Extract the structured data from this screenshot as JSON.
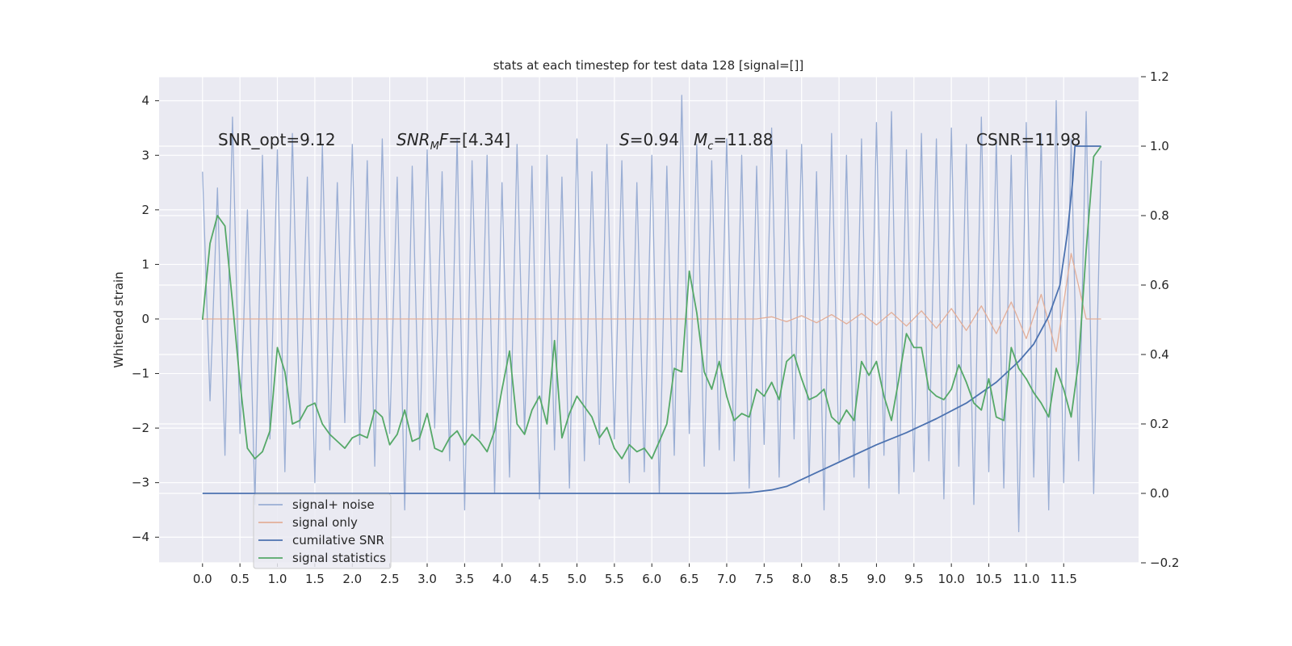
{
  "chart_data": {
    "type": "line",
    "title": "stats at each timestep for test data 128 [signal=[]]",
    "ylabel": "Whitened strain",
    "annotations": [
      "SNR_opt=9.12",
      [
        "SNR",
        "M",
        "F",
        "=[4.34]"
      ],
      [
        "S",
        "=0.94"
      ],
      [
        "M",
        "c",
        "=11.88"
      ],
      "CSNR=11.98"
    ],
    "background": "#eaeaf2",
    "grid": true,
    "legend": "lower left",
    "xlim": [
      -0.58,
      12.5
    ],
    "ylim": [
      -4.47,
      4.44
    ],
    "y2lim": [
      -0.2,
      1.2
    ],
    "xticks": [
      {
        "value": 0,
        "label": "0.0"
      },
      {
        "value": 0.5,
        "label": "0.5"
      },
      {
        "value": 1,
        "label": "1.0"
      },
      {
        "value": 1.5,
        "label": "1.5"
      },
      {
        "value": 2,
        "label": "2.0"
      },
      {
        "value": 2.5,
        "label": "2.5"
      },
      {
        "value": 3,
        "label": "3.0"
      },
      {
        "value": 3.5,
        "label": "3.5"
      },
      {
        "value": 4,
        "label": "4.0"
      },
      {
        "value": 4.5,
        "label": "4.5"
      },
      {
        "value": 5,
        "label": "5.0"
      },
      {
        "value": 5.5,
        "label": "5.5"
      },
      {
        "value": 6,
        "label": "6.0"
      },
      {
        "value": 6.5,
        "label": "6.5"
      },
      {
        "value": 7,
        "label": "7.0"
      },
      {
        "value": 7.5,
        "label": "7.5"
      },
      {
        "value": 8,
        "label": "8.0"
      },
      {
        "value": 8.5,
        "label": "8.5"
      },
      {
        "value": 9,
        "label": "9.0"
      },
      {
        "value": 9.5,
        "label": "9.5"
      },
      {
        "value": 10,
        "label": "10.0"
      },
      {
        "value": 10.5,
        "label": "10.5"
      },
      {
        "value": 11,
        "label": "11.0"
      },
      {
        "value": 11.5,
        "label": "11.5"
      }
    ],
    "yticks": [
      {
        "value": -4,
        "label": "−4"
      },
      {
        "value": -3,
        "label": "−3"
      },
      {
        "value": -2,
        "label": "−2"
      },
      {
        "value": -1,
        "label": "−1"
      },
      0,
      1,
      2,
      3,
      4
    ],
    "y2ticks": [
      {
        "value": -0.2,
        "label": "−0.2"
      },
      {
        "value": 0,
        "label": "0.0"
      },
      0.2,
      0.4,
      0.6,
      0.8,
      {
        "value": 1,
        "label": "1.0"
      },
      1.2
    ],
    "x": [
      0,
      0.1,
      0.2,
      0.3,
      0.4,
      0.5,
      0.6,
      0.7,
      0.8,
      0.9,
      1,
      1.1,
      1.2,
      1.3,
      1.4,
      1.5,
      1.6,
      1.7,
      1.8,
      1.9,
      2,
      2.1,
      2.2,
      2.3,
      2.4,
      2.5,
      2.6,
      2.7,
      2.8,
      2.9,
      3,
      3.1,
      3.2,
      3.3,
      3.4,
      3.5,
      3.6,
      3.7,
      3.8,
      3.9,
      4,
      4.1,
      4.2,
      4.3,
      4.4,
      4.5,
      4.6,
      4.7,
      4.8,
      4.9,
      5,
      5.1,
      5.2,
      5.3,
      5.4,
      5.5,
      5.6,
      5.7,
      5.8,
      5.9,
      6,
      6.1,
      6.2,
      6.3,
      6.4,
      6.5,
      6.6,
      6.7,
      6.8,
      6.9,
      7,
      7.1,
      7.2,
      7.3,
      7.4,
      7.5,
      7.6,
      7.7,
      7.8,
      7.9,
      8,
      8.1,
      8.2,
      8.3,
      8.4,
      8.5,
      8.6,
      8.7,
      8.8,
      8.9,
      9,
      9.1,
      9.2,
      9.3,
      9.4,
      9.5,
      9.6,
      9.7,
      9.8,
      9.9,
      10,
      10.1,
      10.2,
      10.3,
      10.4,
      10.5,
      10.6,
      10.7,
      10.8,
      10.9,
      11,
      11.1,
      11.2,
      11.3,
      11.4,
      11.5,
      11.6,
      11.7,
      11.8,
      11.9,
      12
    ],
    "series": [
      {
        "name": "signal+ noise",
        "color": "#9aaed4",
        "values": [
          2.7,
          -1.5,
          2.4,
          -2.5,
          3.7,
          -2.1,
          2.0,
          -3.4,
          3.0,
          -2.2,
          3.1,
          -2.8,
          3.4,
          -2.0,
          2.6,
          -3.0,
          3.2,
          -2.4,
          2.5,
          -1.9,
          3.2,
          -2.3,
          2.9,
          -2.7,
          3.3,
          -2.1,
          2.6,
          -3.5,
          2.8,
          -2.4,
          3.1,
          -2.0,
          2.7,
          -2.6,
          3.3,
          -3.5,
          2.9,
          -2.2,
          3.0,
          -3.2,
          2.5,
          -2.9,
          3.2,
          -2.1,
          2.8,
          -3.3,
          3.0,
          -2.4,
          2.6,
          -3.1,
          3.3,
          -2.6,
          2.7,
          -2.3,
          3.2,
          -2.2,
          2.9,
          -3.0,
          2.5,
          -2.8,
          3.0,
          -3.2,
          2.8,
          -2.5,
          4.1,
          -2.1,
          3.2,
          -2.7,
          2.9,
          -2.4,
          3.3,
          -2.6,
          3.0,
          -3.1,
          2.8,
          -2.3,
          3.5,
          -2.9,
          3.1,
          -2.2,
          3.2,
          -3.0,
          2.7,
          -3.5,
          3.4,
          -2.6,
          3.0,
          -2.9,
          3.3,
          -3.1,
          3.6,
          -2.5,
          3.8,
          -3.2,
          3.1,
          -2.8,
          3.4,
          -2.6,
          3.3,
          -3.3,
          3.5,
          -2.7,
          3.2,
          -3.4,
          3.7,
          -2.8,
          3.3,
          -3.1,
          3.0,
          -3.9,
          3.6,
          -2.9,
          3.4,
          -3.5,
          4.0,
          -3.0,
          3.3,
          -2.6,
          3.8,
          -3.2,
          2.9
        ]
      },
      {
        "name": "signal only",
        "color": "#e3ae98",
        "x": [
          0,
          0.2,
          0.4,
          0.6,
          0.8,
          1,
          1.2,
          1.4,
          1.6,
          1.8,
          2,
          2.2,
          2.4,
          2.6,
          2.8,
          3,
          3.2,
          3.4,
          3.6,
          3.8,
          4,
          4.2,
          4.4,
          4.6,
          4.8,
          5,
          5.2,
          5.4,
          5.6,
          5.8,
          6,
          6.2,
          6.4,
          6.6,
          6.8,
          7,
          7.2,
          7.4,
          7.6,
          7.8,
          8,
          8.2,
          8.4,
          8.6,
          8.8,
          9,
          9.2,
          9.4,
          9.6,
          9.8,
          10,
          10.2,
          10.4,
          10.6,
          10.8,
          11,
          11.2,
          11.4,
          11.6,
          11.8,
          12
        ],
        "values": [
          0,
          0,
          0,
          0,
          0,
          0,
          0,
          0,
          0,
          0,
          0,
          0,
          0,
          0,
          0,
          0,
          0,
          0,
          0,
          0,
          0,
          0,
          0,
          0,
          0,
          0,
          0,
          0,
          0,
          0,
          0,
          0,
          0,
          0,
          0,
          0,
          0,
          0,
          0.04,
          -0.05,
          0.06,
          -0.07,
          0.08,
          -0.09,
          0.1,
          -0.11,
          0.12,
          -0.13,
          0.15,
          -0.17,
          0.19,
          -0.21,
          0.24,
          -0.27,
          0.31,
          -0.36,
          0.45,
          -0.6,
          1.2,
          0,
          0
        ]
      },
      {
        "name": "cumilative SNR",
        "color": "#4c72b0",
        "axis": "y2",
        "x": [
          0,
          7.0,
          7.3,
          7.6,
          7.8,
          8.0,
          8.3,
          8.6,
          9.0,
          9.4,
          9.8,
          10.2,
          10.6,
          10.9,
          11.1,
          11.3,
          11.45,
          11.55,
          11.62,
          11.65,
          12.0
        ],
        "values": [
          0,
          0,
          0.002,
          0.01,
          0.02,
          0.04,
          0.07,
          0.1,
          0.14,
          0.175,
          0.215,
          0.26,
          0.32,
          0.38,
          0.43,
          0.51,
          0.6,
          0.75,
          0.9,
          1.0,
          1.0
        ]
      },
      {
        "name": "signal statistics",
        "color": "#55a868",
        "axis": "y2",
        "values": [
          0.5,
          0.72,
          0.8,
          0.77,
          0.55,
          0.32,
          0.13,
          0.1,
          0.12,
          0.18,
          0.42,
          0.35,
          0.2,
          0.21,
          0.25,
          0.26,
          0.2,
          0.17,
          0.15,
          0.13,
          0.16,
          0.17,
          0.16,
          0.24,
          0.22,
          0.14,
          0.17,
          0.24,
          0.15,
          0.16,
          0.23,
          0.13,
          0.12,
          0.16,
          0.18,
          0.14,
          0.17,
          0.15,
          0.12,
          0.18,
          0.3,
          0.41,
          0.2,
          0.17,
          0.24,
          0.28,
          0.2,
          0.44,
          0.16,
          0.23,
          0.28,
          0.25,
          0.22,
          0.16,
          0.19,
          0.13,
          0.1,
          0.14,
          0.12,
          0.13,
          0.1,
          0.15,
          0.2,
          0.36,
          0.35,
          0.64,
          0.52,
          0.35,
          0.3,
          0.38,
          0.28,
          0.21,
          0.23,
          0.22,
          0.3,
          0.28,
          0.32,
          0.27,
          0.38,
          0.4,
          0.33,
          0.27,
          0.28,
          0.3,
          0.22,
          0.2,
          0.24,
          0.21,
          0.38,
          0.34,
          0.38,
          0.28,
          0.21,
          0.33,
          0.46,
          0.42,
          0.42,
          0.3,
          0.28,
          0.27,
          0.3,
          0.37,
          0.32,
          0.26,
          0.24,
          0.33,
          0.22,
          0.21,
          0.42,
          0.36,
          0.33,
          0.29,
          0.26,
          0.22,
          0.36,
          0.3,
          0.22,
          0.38,
          0.7,
          0.97,
          1.0
        ]
      }
    ]
  }
}
